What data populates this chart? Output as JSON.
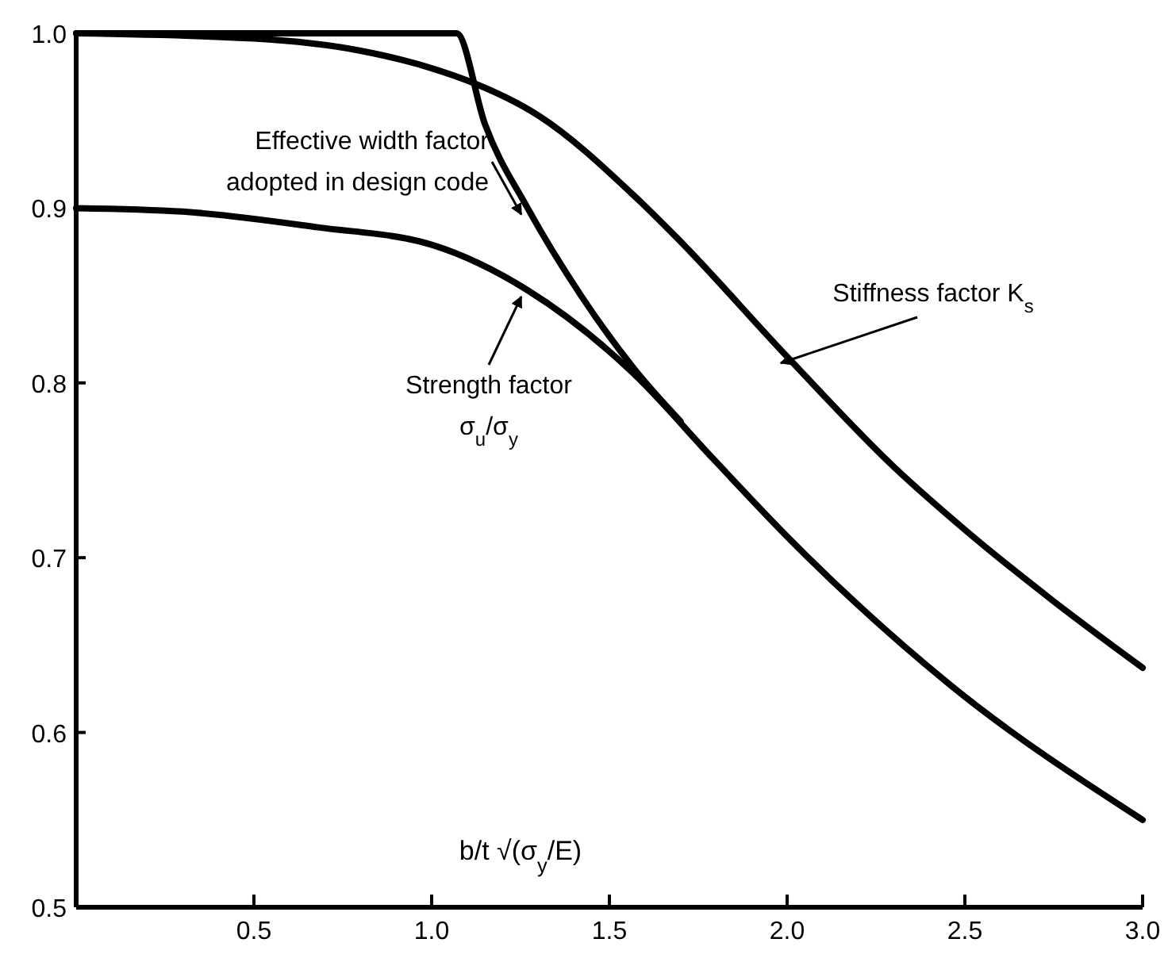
{
  "chart_data": {
    "type": "line",
    "xlabel": "b/t √(σ$_{y}$/E)",
    "xlim": [
      0,
      3
    ],
    "ylim": [
      0.5,
      1.0
    ],
    "xticks": [
      0.5,
      {
        "value": 1,
        "label": "1.0"
      },
      1.5,
      {
        "value": 2,
        "label": "2.0"
      },
      2.5,
      {
        "value": 3,
        "label": "3.0"
      }
    ],
    "yticks": [
      0.5,
      0.6,
      0.7,
      0.8,
      0.9,
      {
        "value": 1,
        "label": "1.0"
      }
    ],
    "grid": false,
    "legend": false,
    "marker": "none",
    "line_style": "solid",
    "series": [
      {
        "name": "Effective width factor\nadopted in design code",
        "color": "#000000",
        "x": [
          0,
          1.07,
          1.15,
          1.27,
          1.42,
          1.57,
          1.7
        ],
        "values": [
          1.0,
          1.0,
          0.948,
          0.9,
          0.85,
          0.808,
          0.778
        ]
      },
      {
        "name": "Strength factor\nσ$_{u}$/σ$_{y}$",
        "color": "#000000",
        "x": [
          0,
          0.3,
          0.68,
          1.0,
          1.27,
          1.57,
          1.79,
          2.01,
          2.46,
          3.0
        ],
        "values": [
          0.9,
          0.898,
          0.889,
          0.879,
          0.853,
          0.805,
          0.757,
          0.71,
          0.627,
          0.55
        ]
      },
      {
        "name": "Stiffness factor K$_{s}$",
        "color": "#000000",
        "x": [
          0,
          0.5,
          0.8,
          1.0,
          1.1,
          1.3,
          1.57,
          1.69,
          2.0,
          2.3,
          2.5,
          2.75,
          3.0
        ],
        "values": [
          1.0,
          0.997,
          0.99,
          0.98,
          0.973,
          0.953,
          0.907,
          0.883,
          0.815,
          0.752,
          0.716,
          0.675,
          0.637
        ]
      }
    ]
  }
}
